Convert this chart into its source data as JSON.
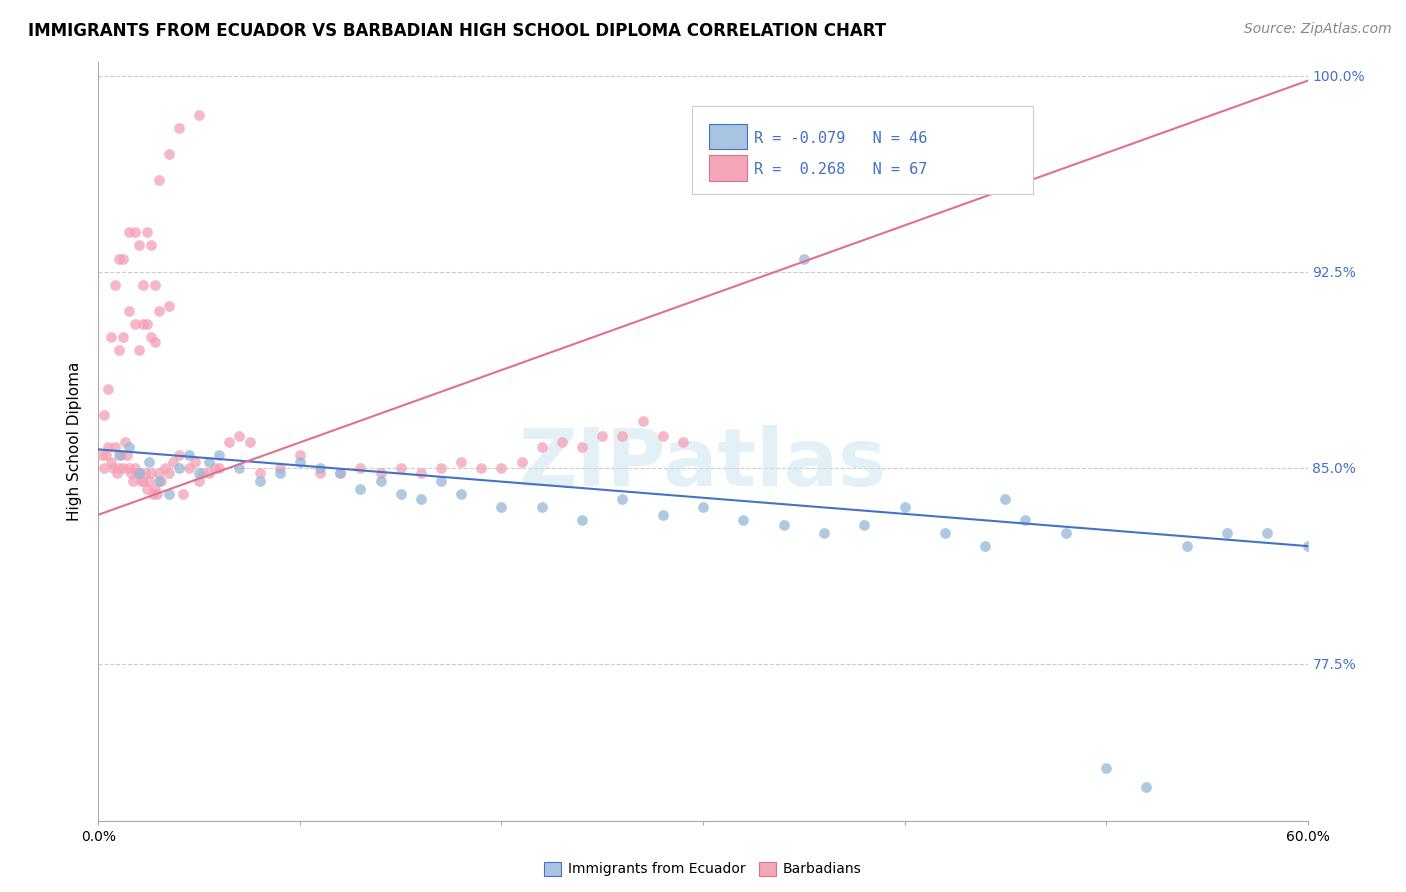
{
  "title": "IMMIGRANTS FROM ECUADOR VS BARBADIAN HIGH SCHOOL DIPLOMA CORRELATION CHART",
  "source": "Source: ZipAtlas.com",
  "ylabel": "High School Diploma",
  "xlim": [
    0.0,
    0.6
  ],
  "ylim": [
    0.715,
    1.005
  ],
  "watermark": "ZIPatlas",
  "ytick_positions": [
    0.775,
    0.85,
    0.925,
    1.0
  ],
  "ytick_labels": [
    "77.5%",
    "85.0%",
    "92.5%",
    "100.0%"
  ],
  "ecuador_R": -0.079,
  "ecuador_N": 46,
  "barbados_R": 0.268,
  "barbados_N": 67,
  "ecuador_scatter": {
    "x": [
      0.01,
      0.015,
      0.02,
      0.025,
      0.03,
      0.035,
      0.04,
      0.045,
      0.05,
      0.055,
      0.06,
      0.07,
      0.08,
      0.09,
      0.1,
      0.11,
      0.12,
      0.13,
      0.14,
      0.15,
      0.16,
      0.17,
      0.18,
      0.2,
      0.22,
      0.24,
      0.26,
      0.28,
      0.3,
      0.32,
      0.34,
      0.36,
      0.38,
      0.4,
      0.42,
      0.44,
      0.46,
      0.48,
      0.5,
      0.52,
      0.54,
      0.56,
      0.58,
      0.6,
      0.35,
      0.45
    ],
    "y": [
      0.855,
      0.858,
      0.848,
      0.852,
      0.845,
      0.84,
      0.85,
      0.855,
      0.848,
      0.852,
      0.855,
      0.85,
      0.845,
      0.848,
      0.852,
      0.85,
      0.848,
      0.842,
      0.845,
      0.84,
      0.838,
      0.845,
      0.84,
      0.835,
      0.835,
      0.83,
      0.838,
      0.832,
      0.835,
      0.83,
      0.828,
      0.825,
      0.828,
      0.835,
      0.825,
      0.82,
      0.83,
      0.825,
      0.735,
      0.728,
      0.82,
      0.825,
      0.825,
      0.82,
      0.93,
      0.838
    ]
  },
  "barbados_scatter": {
    "x": [
      0.002,
      0.003,
      0.004,
      0.005,
      0.006,
      0.007,
      0.008,
      0.009,
      0.01,
      0.011,
      0.012,
      0.013,
      0.014,
      0.015,
      0.016,
      0.017,
      0.018,
      0.019,
      0.02,
      0.021,
      0.022,
      0.023,
      0.024,
      0.025,
      0.026,
      0.027,
      0.028,
      0.029,
      0.03,
      0.031,
      0.033,
      0.035,
      0.037,
      0.04,
      0.042,
      0.045,
      0.048,
      0.05,
      0.052,
      0.055,
      0.058,
      0.06,
      0.065,
      0.07,
      0.075,
      0.08,
      0.09,
      0.1,
      0.11,
      0.12,
      0.13,
      0.14,
      0.15,
      0.16,
      0.17,
      0.18,
      0.19,
      0.2,
      0.21,
      0.22,
      0.23,
      0.24,
      0.25,
      0.26,
      0.27,
      0.28,
      0.29
    ],
    "y": [
      0.855,
      0.85,
      0.855,
      0.858,
      0.852,
      0.85,
      0.858,
      0.848,
      0.85,
      0.855,
      0.85,
      0.86,
      0.855,
      0.85,
      0.848,
      0.845,
      0.85,
      0.848,
      0.848,
      0.845,
      0.845,
      0.848,
      0.842,
      0.845,
      0.848,
      0.84,
      0.842,
      0.84,
      0.848,
      0.845,
      0.85,
      0.848,
      0.852,
      0.855,
      0.84,
      0.85,
      0.852,
      0.845,
      0.848,
      0.848,
      0.85,
      0.85,
      0.86,
      0.862,
      0.86,
      0.848,
      0.85,
      0.855,
      0.848,
      0.848,
      0.85,
      0.848,
      0.85,
      0.848,
      0.85,
      0.852,
      0.85,
      0.85,
      0.852,
      0.858,
      0.86,
      0.858,
      0.862,
      0.862,
      0.868,
      0.862,
      0.86
    ]
  },
  "barbados_upper": {
    "x": [
      0.003,
      0.006,
      0.008,
      0.01,
      0.012,
      0.015,
      0.018,
      0.02,
      0.022,
      0.024,
      0.026,
      0.028,
      0.03,
      0.035,
      0.04,
      0.05
    ],
    "y": [
      0.87,
      0.9,
      0.92,
      0.93,
      0.93,
      0.94,
      0.94,
      0.935,
      0.92,
      0.94,
      0.935,
      0.92,
      0.96,
      0.97,
      0.98,
      0.985
    ]
  },
  "barbados_topleft": {
    "x": [
      0.005,
      0.01,
      0.012,
      0.015,
      0.018,
      0.02,
      0.022,
      0.024,
      0.026,
      0.028,
      0.03,
      0.035
    ],
    "y": [
      0.88,
      0.895,
      0.9,
      0.91,
      0.905,
      0.895,
      0.905,
      0.905,
      0.9,
      0.898,
      0.91,
      0.912
    ]
  },
  "ecuador_line": {
    "x": [
      0.0,
      0.6
    ],
    "y": [
      0.857,
      0.82
    ]
  },
  "barbados_line": {
    "x": [
      0.0,
      0.6
    ],
    "y": [
      0.832,
      0.998
    ]
  },
  "scatter_size": 60,
  "ecuador_color": "#93b8d8",
  "barbados_color": "#f4a0b5",
  "ecuador_line_color": "#4472c4",
  "barbados_line_color": "#e07090",
  "grid_color": "#cccccc",
  "bg_color": "#ffffff",
  "title_fontsize": 12,
  "axis_label_fontsize": 11,
  "tick_fontsize": 10,
  "source_fontsize": 10,
  "source_color": "#888888",
  "ytick_right_color": "#4472c4",
  "legend_series1_color": "#a8c4e0",
  "legend_series2_color": "#f4a7b9"
}
